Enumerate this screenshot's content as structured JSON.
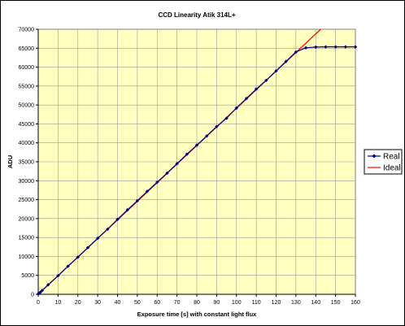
{
  "chart_data": {
    "type": "line",
    "title": "CCD Linearity Atik 314L+",
    "xlabel": "Exposure time [s] with constant light flux",
    "ylabel": "ADU",
    "xlim": [
      0,
      160
    ],
    "ylim": [
      0,
      70000
    ],
    "xticks": [
      0,
      10,
      20,
      30,
      40,
      50,
      60,
      70,
      80,
      90,
      100,
      110,
      120,
      130,
      140,
      150,
      160
    ],
    "yticks": [
      0,
      5000,
      10000,
      15000,
      20000,
      25000,
      30000,
      35000,
      40000,
      45000,
      50000,
      55000,
      60000,
      65000,
      70000
    ],
    "grid": true,
    "plot_background": "#ffffc0",
    "legend": {
      "position": "right"
    },
    "series": [
      {
        "name": "Real",
        "color": "#000080",
        "marker": "diamond",
        "x": [
          0,
          0.5,
          1,
          2,
          5,
          10,
          15,
          20,
          25,
          30,
          35,
          40,
          45,
          50,
          55,
          60,
          65,
          70,
          75,
          80,
          85,
          90,
          95,
          100,
          105,
          110,
          115,
          120,
          125,
          130,
          135,
          140,
          145,
          150,
          155,
          160
        ],
        "y": [
          100,
          300,
          500,
          1000,
          2500,
          4900,
          7400,
          9800,
          12300,
          14800,
          17200,
          19800,
          22300,
          24700,
          27200,
          29600,
          32000,
          34500,
          37000,
          39400,
          41800,
          44300,
          46500,
          49200,
          51700,
          54200,
          56500,
          59000,
          61500,
          64000,
          65100,
          65300,
          65350,
          65350,
          65350,
          65350
        ]
      },
      {
        "name": "Ideal",
        "color": "#ff0000",
        "marker": "none",
        "x": [
          0,
          142.5
        ],
        "y": [
          0,
          70000
        ]
      }
    ]
  }
}
